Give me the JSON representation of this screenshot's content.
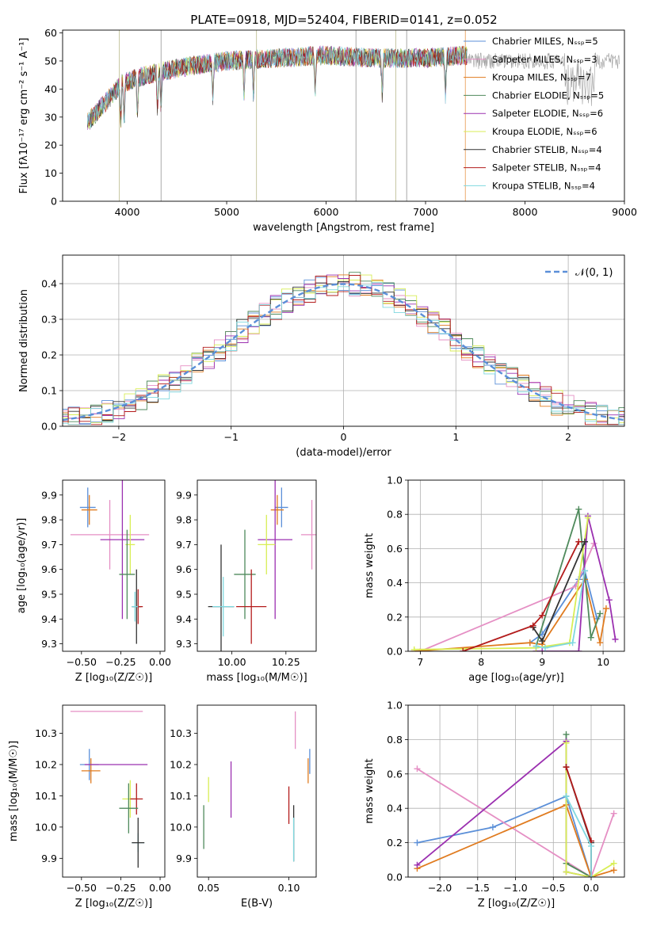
{
  "figure": {
    "title": "PLATE=0918, MJD=52404, FIBERID=0141, z=0.052"
  },
  "models": [
    {
      "name": "Chabrier MILES, N_SSP=5",
      "color": "#5b8fd8"
    },
    {
      "name": "Salpeter MILES, N_SSP=3",
      "color": "#e58fc4"
    },
    {
      "name": "Kroupa MILES, N_SSP=7",
      "color": "#e07b1f"
    },
    {
      "name": "Chabrier ELODIE, N_SSP=5",
      "color": "#4f8a5c"
    },
    {
      "name": "Salpeter ELODIE, N_SSP=6",
      "color": "#9b30b0"
    },
    {
      "name": "Kroupa ELODIE, N_SSP=6",
      "color": "#d8ee55"
    },
    {
      "name": "Chabrier STELIB, N_SSP=4",
      "color": "#333333"
    },
    {
      "name": "Salpeter STELIB, N_SSP=4",
      "color": "#b31c1c"
    },
    {
      "name": "Kroupa STELIB, N_SSP=4",
      "color": "#7fd8df"
    }
  ],
  "chart_data": [
    {
      "id": "spectrum",
      "type": "line",
      "xlabel": "wavelength [Angstrom, rest frame]",
      "ylabel": "Flux [fλ10⁻¹⁷ erg cm⁻² s⁻¹ A⁻¹]",
      "xlim": [
        3350,
        9000
      ],
      "ylim": [
        0,
        61
      ],
      "xticks": [
        4000,
        5000,
        6000,
        7000,
        8000,
        9000
      ],
      "yticks": [
        0,
        10,
        20,
        30,
        40,
        50,
        60
      ],
      "grid": false,
      "legend": "top-right",
      "continuum": {
        "x": [
          3600,
          3700,
          3800,
          3950,
          4100,
          4300,
          4600,
          5000,
          5500,
          6000,
          6500,
          7000,
          7400
        ],
        "y": [
          28,
          32,
          36,
          42,
          44,
          46,
          48,
          50,
          51,
          52,
          51,
          51,
          52
        ]
      },
      "notes_x": [
        3920,
        4340,
        5300,
        6300,
        6700,
        6810,
        7400
      ]
    },
    {
      "id": "residuals",
      "type": "bar",
      "xlabel": "(data-model)/error",
      "ylabel": "Normed distribution",
      "xlim": [
        -2.5,
        2.5
      ],
      "ylim": [
        0,
        0.48
      ],
      "xticks": [
        -2,
        -1,
        0,
        1,
        2
      ],
      "yticks": [
        0.0,
        0.1,
        0.2,
        0.3,
        0.4
      ],
      "grid": true,
      "legend": "top-right",
      "reference": {
        "name": "𝒩(0, 1)",
        "color": "#5b8fd8",
        "mean": 0,
        "sigma": 1
      },
      "bin_width": 0.1
    },
    {
      "id": "age-vs-Z",
      "type": "scatter",
      "xlabel": "Z [log₁₀(Z/Z☉)]",
      "ylabel": "age  [log₁₀(age/yr)]",
      "xlim": [
        -0.62,
        0.03
      ],
      "ylim": [
        9.27,
        9.96
      ],
      "xticks": [
        -0.5,
        -0.25,
        0.0
      ],
      "yticks": [
        9.3,
        9.4,
        9.5,
        9.6,
        9.7,
        9.8,
        9.9
      ],
      "points": [
        {
          "model": 0,
          "x": -0.46,
          "y": 9.85,
          "xerr": 0.05,
          "yerr": 0.08
        },
        {
          "model": 2,
          "x": -0.45,
          "y": 9.84,
          "xerr": 0.05,
          "yerr": 0.06
        },
        {
          "model": 1,
          "x": -0.32,
          "y": 9.74,
          "xerr": 0.25,
          "yerr": 0.14
        },
        {
          "model": 4,
          "x": -0.24,
          "y": 9.72,
          "xerr": 0.14,
          "yerr": 0.32
        },
        {
          "model": 5,
          "x": -0.19,
          "y": 9.7,
          "xerr": 0.03,
          "yerr": 0.12
        },
        {
          "model": 3,
          "x": -0.21,
          "y": 9.58,
          "xerr": 0.05,
          "yerr": 0.18
        },
        {
          "model": 6,
          "x": -0.15,
          "y": 9.45,
          "xerr": 0.03,
          "yerr": 0.15
        },
        {
          "model": 7,
          "x": -0.14,
          "y": 9.45,
          "xerr": 0.03,
          "yerr": 0.07
        },
        {
          "model": 8,
          "x": -0.16,
          "y": 9.45,
          "xerr": 0.02,
          "yerr": 0.06
        }
      ]
    },
    {
      "id": "age-vs-mass",
      "type": "scatter",
      "xlabel": "mass [log₁₀(M/M☉)]",
      "ylabel": "",
      "xlim": [
        9.84,
        10.39
      ],
      "ylim": [
        9.27,
        9.96
      ],
      "xticks": [
        10.0,
        10.25
      ],
      "yticks": [
        9.3,
        9.4,
        9.5,
        9.6,
        9.7,
        9.8,
        9.9
      ],
      "points": [
        {
          "model": 0,
          "x": 10.23,
          "y": 9.85,
          "xerr": 0.03,
          "yerr": 0.08
        },
        {
          "model": 2,
          "x": 10.21,
          "y": 9.84,
          "xerr": 0.03,
          "yerr": 0.06
        },
        {
          "model": 1,
          "x": 10.37,
          "y": 9.74,
          "xerr": 0.05,
          "yerr": 0.14
        },
        {
          "model": 4,
          "x": 10.2,
          "y": 9.72,
          "xerr": 0.08,
          "yerr": 0.32
        },
        {
          "model": 5,
          "x": 10.16,
          "y": 9.7,
          "xerr": 0.04,
          "yerr": 0.12
        },
        {
          "model": 3,
          "x": 10.06,
          "y": 9.58,
          "xerr": 0.05,
          "yerr": 0.18
        },
        {
          "model": 6,
          "x": 9.95,
          "y": 9.45,
          "xerr": 0.06,
          "yerr": 0.25
        },
        {
          "model": 7,
          "x": 10.09,
          "y": 9.45,
          "xerr": 0.07,
          "yerr": 0.15
        },
        {
          "model": 8,
          "x": 9.96,
          "y": 9.45,
          "xerr": 0.05,
          "yerr": 0.12
        }
      ]
    },
    {
      "id": "massweight-vs-age",
      "type": "line",
      "xlabel": "age  [log₁₀(age/yr)]",
      "ylabel": "mass weight",
      "xlim": [
        6.8,
        10.35
      ],
      "ylim": [
        0,
        1
      ],
      "xticks": [
        7,
        8,
        9,
        10
      ],
      "yticks": [
        0.0,
        0.2,
        0.4,
        0.6,
        0.8,
        1.0
      ],
      "grid": true,
      "series": [
        {
          "model": 0,
          "x": [
            8.8,
            9.0,
            9.6,
            9.7,
            9.9
          ],
          "y": [
            0.05,
            0.1,
            0.42,
            0.47,
            0.19
          ]
        },
        {
          "model": 1,
          "x": [
            7.0,
            9.55,
            9.85
          ],
          "y": [
            0.0,
            0.38,
            0.63
          ]
        },
        {
          "model": 2,
          "x": [
            6.9,
            8.8,
            9.0,
            9.7,
            9.95,
            10.05
          ],
          "y": [
            0.0,
            0.05,
            0.04,
            0.42,
            0.05,
            0.25
          ]
        },
        {
          "model": 3,
          "x": [
            8.9,
            9.6,
            9.8,
            9.95
          ],
          "y": [
            0.03,
            0.83,
            0.08,
            0.22
          ]
        },
        {
          "model": 4,
          "x": [
            8.9,
            9.0,
            9.6,
            9.75,
            10.1,
            10.2
          ],
          "y": [
            0.0,
            0.0,
            0.0,
            0.79,
            0.3,
            0.07
          ]
        },
        {
          "model": 5,
          "x": [
            6.9,
            8.9,
            9.45,
            9.75
          ],
          "y": [
            0.01,
            0.02,
            0.05,
            0.78
          ]
        },
        {
          "model": 6,
          "x": [
            8.85,
            9.0,
            9.7
          ],
          "y": [
            0.14,
            0.06,
            0.64
          ]
        },
        {
          "model": 7,
          "x": [
            7.7,
            8.85,
            9.0,
            9.6
          ],
          "y": [
            0.0,
            0.15,
            0.21,
            0.64
          ]
        },
        {
          "model": 8,
          "x": [
            8.9,
            9.05,
            9.5,
            9.7
          ],
          "y": [
            0.03,
            0.02,
            0.05,
            0.47
          ]
        }
      ]
    },
    {
      "id": "mass-vs-Z",
      "type": "scatter",
      "xlabel": "Z [log₁₀(Z/Z☉)]",
      "ylabel": "mass [log₁₀(M/M☉)]",
      "xlim": [
        -0.62,
        0.03
      ],
      "ylim": [
        9.84,
        10.39
      ],
      "xticks": [
        -0.5,
        -0.25,
        0.0
      ],
      "yticks": [
        9.9,
        10.0,
        10.1,
        10.2,
        10.3
      ],
      "points": [
        {
          "model": 1,
          "x": -0.34,
          "y": 10.37,
          "xerr": 0.23,
          "yerr": 0.0
        },
        {
          "model": 0,
          "x": -0.45,
          "y": 10.2,
          "xerr": 0.06,
          "yerr": 0.05
        },
        {
          "model": 2,
          "x": -0.44,
          "y": 10.18,
          "xerr": 0.06,
          "yerr": 0.04
        },
        {
          "model": 4,
          "x": -0.28,
          "y": 10.2,
          "xerr": 0.2,
          "yerr": 0.0
        },
        {
          "model": 5,
          "x": -0.19,
          "y": 10.09,
          "xerr": 0.05,
          "yerr": 0.06
        },
        {
          "model": 7,
          "x": -0.15,
          "y": 10.09,
          "xerr": 0.04,
          "yerr": 0.05
        },
        {
          "model": 3,
          "x": -0.2,
          "y": 10.06,
          "xerr": 0.06,
          "yerr": 0.08
        },
        {
          "model": 8,
          "x": -0.14,
          "y": 9.95,
          "xerr": 0.04,
          "yerr": 0.03
        },
        {
          "model": 6,
          "x": -0.14,
          "y": 9.95,
          "xerr": 0.04,
          "yerr": 0.08
        }
      ]
    },
    {
      "id": "mass-vs-EBV",
      "type": "scatter",
      "xlabel": "E(B-V)",
      "ylabel": "",
      "xlim": [
        0.043,
        0.117
      ],
      "ylim": [
        9.84,
        10.39
      ],
      "xticks": [
        0.05,
        0.1
      ],
      "yticks": [
        9.9,
        10.0,
        10.1,
        10.2,
        10.3
      ],
      "points": [
        {
          "model": 3,
          "x": 0.047,
          "y": 10.0,
          "xerr": 0.0,
          "yerr": 0.07
        },
        {
          "model": 5,
          "x": 0.05,
          "y": 10.12,
          "xerr": 0.0,
          "yerr": 0.04
        },
        {
          "model": 4,
          "x": 0.064,
          "y": 10.12,
          "xerr": 0.0,
          "yerr": 0.09
        },
        {
          "model": 7,
          "x": 0.1,
          "y": 10.07,
          "xerr": 0.0,
          "yerr": 0.06
        },
        {
          "model": 6,
          "x": 0.103,
          "y": 9.98,
          "xerr": 0.0,
          "yerr": 0.09
        },
        {
          "model": 8,
          "x": 0.103,
          "y": 9.96,
          "xerr": 0.0,
          "yerr": 0.07
        },
        {
          "model": 1,
          "x": 0.104,
          "y": 10.31,
          "xerr": 0.0,
          "yerr": 0.06
        },
        {
          "model": 2,
          "x": 0.112,
          "y": 10.18,
          "xerr": 0.0,
          "yerr": 0.04
        },
        {
          "model": 0,
          "x": 0.113,
          "y": 10.21,
          "xerr": 0.0,
          "yerr": 0.04
        }
      ]
    },
    {
      "id": "massweight-vs-Z",
      "type": "line",
      "xlabel": "Z [log₁₀(Z/Z☉)]",
      "ylabel": "mass weight",
      "xlim": [
        -2.42,
        0.44
      ],
      "ylim": [
        0,
        1
      ],
      "xticks": [
        -2.0,
        -1.5,
        -1.0,
        -0.5,
        0.0
      ],
      "yticks": [
        0.0,
        0.2,
        0.4,
        0.6,
        0.8,
        1.0
      ],
      "grid": true,
      "series": [
        {
          "model": 0,
          "x": [
            -2.3,
            -1.3,
            -0.33,
            0.0
          ],
          "y": [
            0.2,
            0.29,
            0.47,
            0.0
          ]
        },
        {
          "model": 1,
          "x": [
            -2.3,
            0.0,
            0.3
          ],
          "y": [
            0.63,
            0.0,
            0.37
          ]
        },
        {
          "model": 2,
          "x": [
            -2.3,
            -0.33,
            0.0,
            0.3
          ],
          "y": [
            0.05,
            0.42,
            0.0,
            0.04
          ]
        },
        {
          "model": 3,
          "x": [
            -0.33,
            -0.33,
            0.0
          ],
          "y": [
            0.83,
            0.08,
            0.0
          ]
        },
        {
          "model": 4,
          "x": [
            -2.3,
            -0.33,
            -0.33,
            0.0
          ],
          "y": [
            0.07,
            0.79,
            0.03,
            0.0
          ]
        },
        {
          "model": 5,
          "x": [
            -0.33,
            -0.33,
            0.0,
            0.3
          ],
          "y": [
            0.78,
            0.03,
            0.0,
            0.08
          ]
        },
        {
          "model": 6,
          "x": [
            -0.33,
            0.0,
            0.0
          ],
          "y": [
            0.64,
            0.2,
            0.0
          ]
        },
        {
          "model": 7,
          "x": [
            -0.33,
            0.0,
            0.0
          ],
          "y": [
            0.64,
            0.21,
            0.0
          ]
        },
        {
          "model": 8,
          "x": [
            -0.33,
            0.0,
            0.0
          ],
          "y": [
            0.47,
            0.18,
            0.0
          ]
        }
      ]
    }
  ]
}
